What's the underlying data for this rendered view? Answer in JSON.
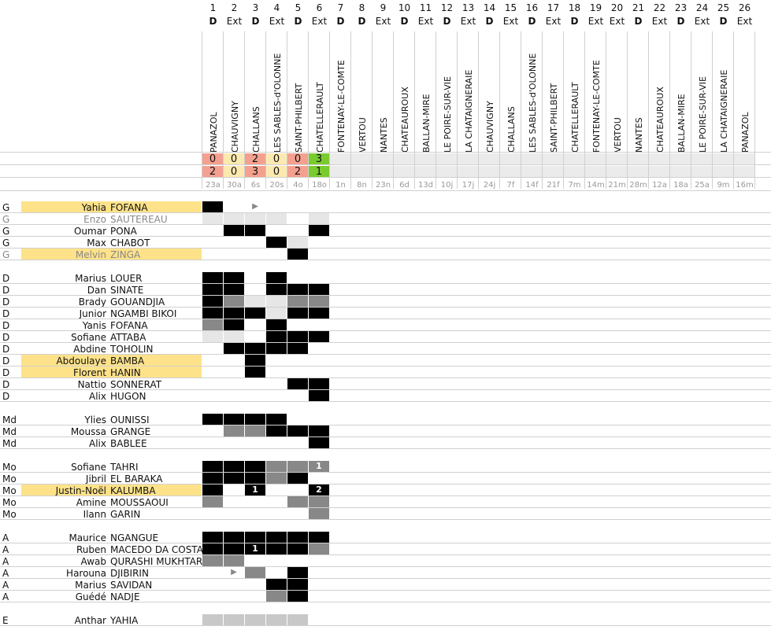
{
  "matches": [
    {
      "n": "1",
      "ha": "D",
      "opp": "PANAZOL",
      "s1": "0",
      "s2": "2",
      "c": "#f4a090",
      "date": "23a"
    },
    {
      "n": "2",
      "ha": "Ext",
      "opp": "CHAUVIGNY",
      "s1": "0",
      "s2": "0",
      "c": "#fbe9b0",
      "date": "30a"
    },
    {
      "n": "3",
      "ha": "D",
      "opp": "CHALLANS",
      "s1": "2",
      "s2": "3",
      "c": "#f4a090",
      "date": "6s"
    },
    {
      "n": "4",
      "ha": "Ext",
      "opp": "LES SABLES-d'OLONNE",
      "s1": "0",
      "s2": "0",
      "c": "#fbe9b0",
      "date": "20s"
    },
    {
      "n": "5",
      "ha": "D",
      "opp": "SAINT-PHILBERT",
      "s1": "0",
      "s2": "2",
      "c": "#f4a090",
      "date": "4o"
    },
    {
      "n": "6",
      "ha": "Ext",
      "opp": "CHATELLERAULT",
      "s1": "3",
      "s2": "1",
      "c": "#7acb2f",
      "date": "18o"
    },
    {
      "n": "7",
      "ha": "D",
      "opp": "FONTENAY-LE-COMTE",
      "s1": "",
      "s2": "",
      "c": "",
      "date": "1n"
    },
    {
      "n": "8",
      "ha": "D",
      "opp": "VERTOU",
      "s1": "",
      "s2": "",
      "c": "",
      "date": "8n"
    },
    {
      "n": "9",
      "ha": "Ext",
      "opp": "NANTES",
      "s1": "",
      "s2": "",
      "c": "",
      "date": "23n"
    },
    {
      "n": "10",
      "ha": "D",
      "opp": "CHATEAUROUX",
      "s1": "",
      "s2": "",
      "c": "",
      "date": "6d"
    },
    {
      "n": "11",
      "ha": "Ext",
      "opp": "BALLAN-MIRE",
      "s1": "",
      "s2": "",
      "c": "",
      "date": "13d"
    },
    {
      "n": "12",
      "ha": "D",
      "opp": "LE POIRE-SUR-VIE",
      "s1": "",
      "s2": "",
      "c": "",
      "date": "10j"
    },
    {
      "n": "13",
      "ha": "Ext",
      "opp": "LA CHATAIGNERAIE",
      "s1": "",
      "s2": "",
      "c": "",
      "date": "17j"
    },
    {
      "n": "14",
      "ha": "D",
      "opp": "CHAUVIGNY",
      "s1": "",
      "s2": "",
      "c": "",
      "date": "24j"
    },
    {
      "n": "15",
      "ha": "Ext",
      "opp": "CHALLANS",
      "s1": "",
      "s2": "",
      "c": "",
      "date": "7f"
    },
    {
      "n": "16",
      "ha": "D",
      "opp": "LES SABLES-d'OLONNE",
      "s1": "",
      "s2": "",
      "c": "",
      "date": "14f"
    },
    {
      "n": "17",
      "ha": "Ext",
      "opp": "SAINT-PHILBERT",
      "s1": "",
      "s2": "",
      "c": "",
      "date": "21f"
    },
    {
      "n": "18",
      "ha": "D",
      "opp": "CHATELLERAULT",
      "s1": "",
      "s2": "",
      "c": "",
      "date": "7m"
    },
    {
      "n": "19",
      "ha": "Ext",
      "opp": "FONTENAY-LE-COMTE",
      "s1": "",
      "s2": "",
      "c": "",
      "date": "14m"
    },
    {
      "n": "20",
      "ha": "Ext",
      "opp": "VERTOU",
      "s1": "",
      "s2": "",
      "c": "",
      "date": "21m"
    },
    {
      "n": "21",
      "ha": "D",
      "opp": "NANTES",
      "s1": "",
      "s2": "",
      "c": "",
      "date": "28m"
    },
    {
      "n": "22",
      "ha": "Ext",
      "opp": "CHATEAUROUX",
      "s1": "",
      "s2": "",
      "c": "",
      "date": "12a"
    },
    {
      "n": "23",
      "ha": "D",
      "opp": "BALLAN-MIRE",
      "s1": "",
      "s2": "",
      "c": "",
      "date": "18a"
    },
    {
      "n": "24",
      "ha": "Ext",
      "opp": "LE POIRE-SUR-VIE",
      "s1": "",
      "s2": "",
      "c": "",
      "date": "25a"
    },
    {
      "n": "25",
      "ha": "D",
      "opp": "LA CHATAIGNERAIE",
      "s1": "",
      "s2": "",
      "c": "",
      "date": "9m"
    },
    {
      "n": "26",
      "ha": "Ext",
      "opp": "PANAZOL",
      "s1": "",
      "s2": "",
      "c": "",
      "date": "16m"
    }
  ],
  "players": [
    {
      "pos": "G",
      "fn": "Yahia",
      "ln": "FOFANA",
      "hl": true,
      "grey": false,
      "cells": [
        "b",
        "",
        "a:▶",
        "",
        "",
        ""
      ]
    },
    {
      "pos": "G",
      "fn": "Enzo",
      "ln": "SAUTEREAU",
      "hl": false,
      "grey": true,
      "cells": [
        "l",
        "l",
        "l",
        "l",
        "",
        "l"
      ]
    },
    {
      "pos": "G",
      "fn": "Oumar",
      "ln": "PONA",
      "hl": false,
      "grey": false,
      "cells": [
        "",
        "b",
        "b",
        "",
        "",
        "b"
      ]
    },
    {
      "pos": "G",
      "fn": "Max",
      "ln": "CHABOT",
      "hl": false,
      "grey": false,
      "cells": [
        "",
        "",
        "",
        "b",
        "l",
        ""
      ]
    },
    {
      "pos": "G",
      "fn": "Melvin",
      "ln": "ZINGA",
      "hl": true,
      "grey": true,
      "cells": [
        "",
        "",
        "",
        "",
        "b",
        ""
      ]
    },
    null,
    {
      "pos": "D",
      "fn": "Marius",
      "ln": "LOUER",
      "hl": false,
      "grey": false,
      "cells": [
        "b",
        "b",
        "",
        "b",
        "",
        ""
      ]
    },
    {
      "pos": "D",
      "fn": "Dan",
      "ln": "SINATE",
      "hl": false,
      "grey": false,
      "cells": [
        "b",
        "b",
        "",
        "b",
        "b",
        "b"
      ]
    },
    {
      "pos": "D",
      "fn": "Brady",
      "ln": "GOUANDJIA",
      "hl": false,
      "grey": false,
      "cells": [
        "b",
        "g",
        "l",
        "l",
        "g",
        "g"
      ]
    },
    {
      "pos": "D",
      "fn": "Junior",
      "ln": "NGAMBI BIKOI",
      "hl": false,
      "grey": false,
      "cells": [
        "b",
        "b",
        "b",
        "l",
        "b",
        "b"
      ]
    },
    {
      "pos": "D",
      "fn": "Yanis",
      "ln": "FOFANA",
      "hl": false,
      "grey": false,
      "cells": [
        "g",
        "b",
        "",
        "b",
        "",
        ""
      ]
    },
    {
      "pos": "D",
      "fn": "Sofiane",
      "ln": "ATTABA",
      "hl": false,
      "grey": false,
      "cells": [
        "l",
        "l",
        "",
        "b",
        "b",
        "b"
      ]
    },
    {
      "pos": "D",
      "fn": "Abdine",
      "ln": "TOHOLIN",
      "hl": false,
      "grey": false,
      "cells": [
        "",
        "b",
        "b",
        "b",
        "b",
        ""
      ]
    },
    {
      "pos": "D",
      "fn": "Abdoulaye",
      "ln": "BAMBA",
      "hl": true,
      "grey": false,
      "cells": [
        "",
        "",
        "b",
        "",
        "",
        ""
      ]
    },
    {
      "pos": "D",
      "fn": "Florent",
      "ln": "HANIN",
      "hl": true,
      "grey": false,
      "cells": [
        "",
        "",
        "b",
        "",
        "",
        ""
      ]
    },
    {
      "pos": "D",
      "fn": "Nattio",
      "ln": "SONNERAT",
      "hl": false,
      "grey": false,
      "cells": [
        "",
        "",
        "",
        "",
        "b",
        "b"
      ]
    },
    {
      "pos": "D",
      "fn": "Alix",
      "ln": "HUGON",
      "hl": false,
      "grey": false,
      "cells": [
        "",
        "",
        "",
        "",
        "",
        "b"
      ]
    },
    null,
    {
      "pos": "Md",
      "fn": "Ylies",
      "ln": "OUNISSI",
      "hl": false,
      "grey": false,
      "cells": [
        "b",
        "b",
        "b",
        "b",
        "",
        ""
      ]
    },
    {
      "pos": "Md",
      "fn": "Moussa",
      "ln": "GRANGE",
      "hl": false,
      "grey": false,
      "cells": [
        "",
        "g",
        "g",
        "b",
        "b",
        "b"
      ]
    },
    {
      "pos": "Md",
      "fn": "Alix",
      "ln": "BABLEE",
      "hl": false,
      "grey": false,
      "cells": [
        "",
        "",
        "",
        "",
        "",
        "b"
      ]
    },
    null,
    {
      "pos": "Mo",
      "fn": "Sofiane",
      "ln": "TAHRI",
      "hl": false,
      "grey": false,
      "cells": [
        "b",
        "b",
        "b",
        "g",
        "g",
        "g:1"
      ]
    },
    {
      "pos": "Mo",
      "fn": "Jibril",
      "ln": "EL BARAKA",
      "hl": false,
      "grey": false,
      "cells": [
        "b",
        "b",
        "b",
        "g",
        "b",
        ""
      ]
    },
    {
      "pos": "Mo",
      "fn": "Justin-Noël",
      "ln": "KALUMBA",
      "hl": true,
      "grey": false,
      "cells": [
        "b",
        "",
        "b:1",
        "",
        "",
        "b:2"
      ]
    },
    {
      "pos": "Mo",
      "fn": "Amine",
      "ln": "MOUSSAOUI",
      "hl": false,
      "grey": false,
      "cells": [
        "g",
        "",
        "",
        "",
        "g",
        "g"
      ]
    },
    {
      "pos": "Mo",
      "fn": "Ilann",
      "ln": "GARIN",
      "hl": false,
      "grey": false,
      "cells": [
        "",
        "",
        "",
        "",
        "",
        "g"
      ]
    },
    null,
    {
      "pos": "A",
      "fn": "Maurice",
      "ln": "NGANGUE",
      "hl": false,
      "grey": false,
      "cells": [
        "b",
        "b",
        "b",
        "b",
        "b",
        "b"
      ]
    },
    {
      "pos": "A",
      "fn": "Ruben",
      "ln": "MACEDO DA COSTA",
      "hl": false,
      "grey": false,
      "cells": [
        "b",
        "b",
        "b:1",
        "b",
        "b",
        "g"
      ]
    },
    {
      "pos": "A",
      "fn": "Awab",
      "ln": "QURASHI MUKHTAR",
      "hl": false,
      "grey": false,
      "cells": [
        "g",
        "g",
        "",
        "",
        "",
        ""
      ]
    },
    {
      "pos": "A",
      "fn": "Harouna",
      "ln": "DJIBIRIN",
      "hl": false,
      "grey": false,
      "cells": [
        "",
        "a:▶",
        "g",
        "",
        "b",
        ""
      ]
    },
    {
      "pos": "A",
      "fn": "Marius",
      "ln": "SAVIDAN",
      "hl": false,
      "grey": false,
      "cells": [
        "",
        "",
        "",
        "b",
        "b",
        ""
      ]
    },
    {
      "pos": "A",
      "fn": "Guédé",
      "ln": "NADJE",
      "hl": false,
      "grey": false,
      "cells": [
        "",
        "",
        "",
        "g",
        "b",
        ""
      ]
    },
    null,
    {
      "pos": "E",
      "fn": "Anthar",
      "ln": "YAHIA",
      "hl": false,
      "grey": false,
      "cells": [
        "m",
        "m",
        "m",
        "m",
        "m",
        ""
      ]
    }
  ]
}
